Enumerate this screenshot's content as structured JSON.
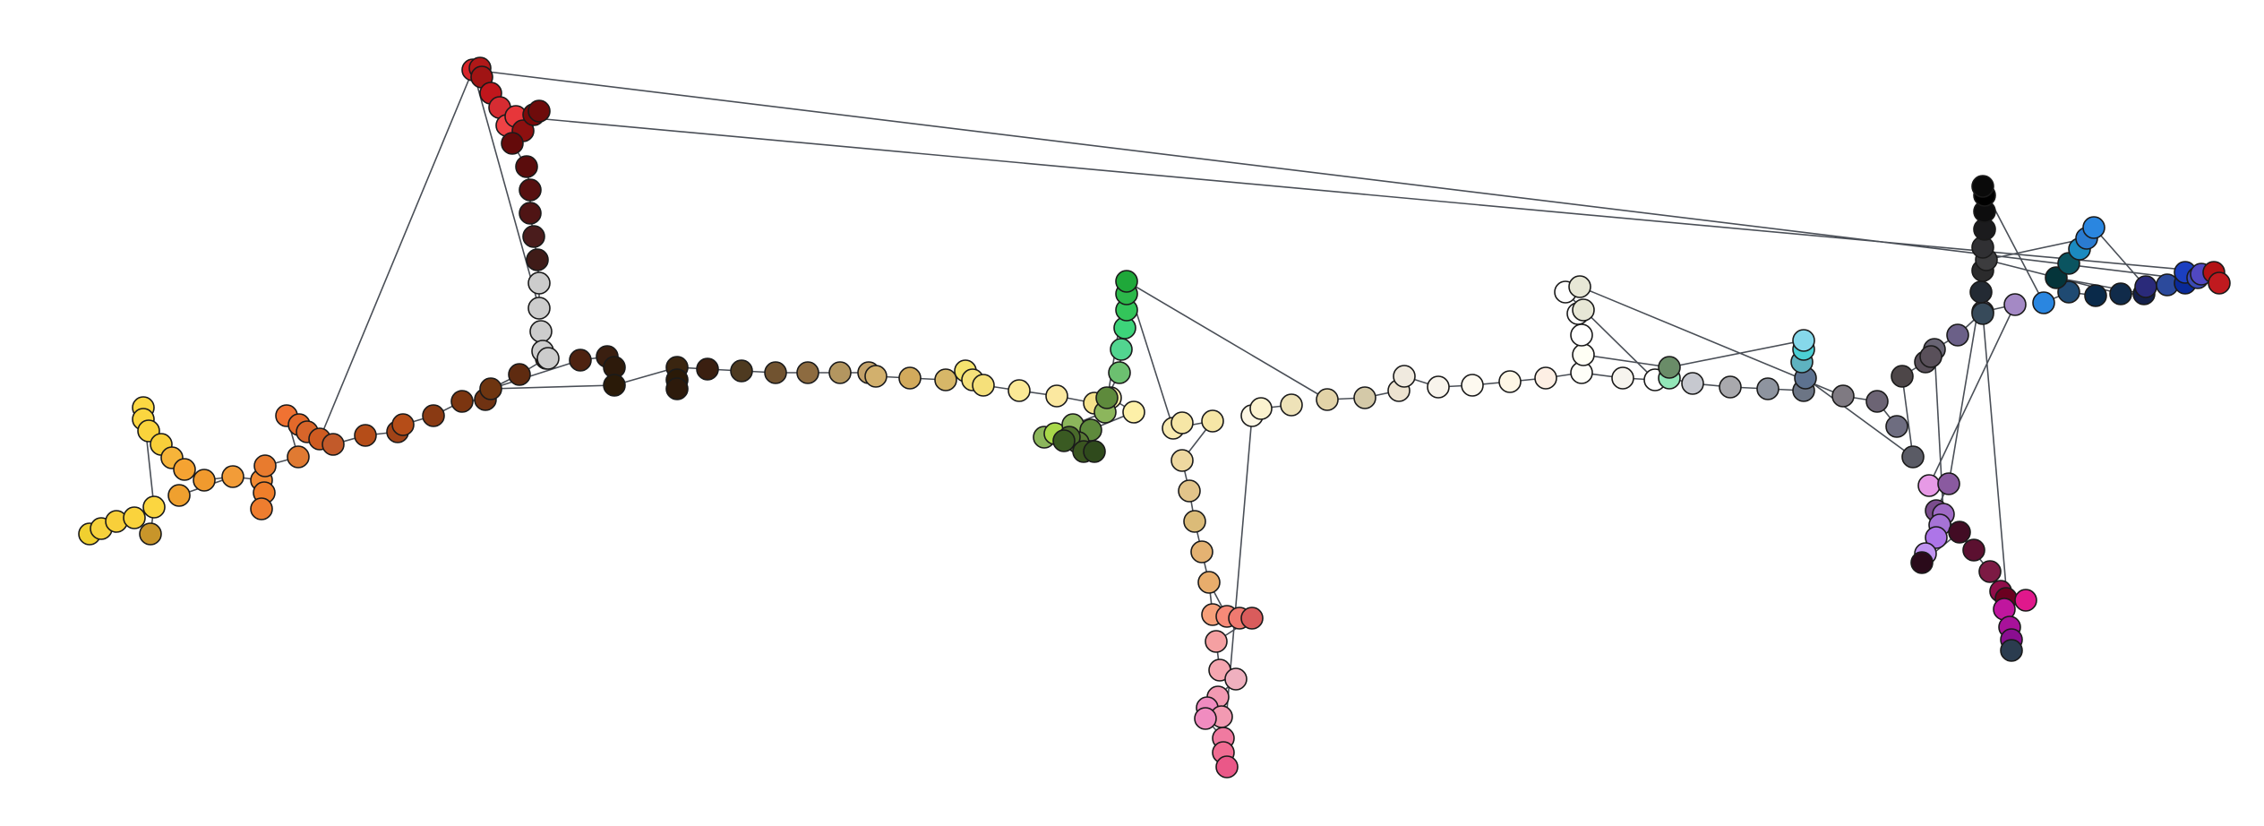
{
  "diagram": {
    "type": "tree",
    "description_visible_text": "",
    "colors": [
      "#f0d030",
      "#f6d23c",
      "#f8cf3a",
      "#fad33c",
      "#fbd640",
      "#fcd843",
      "#c8952a",
      "#f6b43a",
      "#f5a332",
      "#f09a2e",
      "#efa02f",
      "#f29c38",
      "#f28a33",
      "#ef7e2a",
      "#ee7d2f",
      "#e87b2e",
      "#e07a32",
      "#f07232",
      "#e3692a",
      "#d8652a",
      "#cf5b21",
      "#c25a2a",
      "#b54d18",
      "#a14317",
      "#8a3a13",
      "#7b3510",
      "#6f3212",
      "#6e3510",
      "#5f2b10",
      "#5a2a12",
      "#4e2210",
      "#3a1f10",
      "#2d1a0b",
      "#2a1a08",
      "#3a2510",
      "#4e3a20",
      "#715330",
      "#8d6b40",
      "#b39660",
      "#c3a26a",
      "#d2b06d",
      "#d2aa5c",
      "#d7b768",
      "#e7c56e",
      "#f5e46f",
      "#f5e07a",
      "#fbe996",
      "#fbe8a0",
      "#f5e28c",
      "#fdf0a8",
      "#3a5a22",
      "#2f4a1c",
      "#3a5520",
      "#496a2a",
      "#587a35",
      "#5e8a3c",
      "#8cb65c",
      "#a8d84a",
      "#c3f050",
      "#1aa83c",
      "#1fa83a",
      "#2cb84a",
      "#33c55a",
      "#3dd47a",
      "#52d590",
      "#6cc070",
      "#f8eab0",
      "#f6e6a6",
      "#eed8a0",
      "#e2c48a",
      "#dbbb78",
      "#e4b272",
      "#e8ad6c",
      "#f6a07a",
      "#f68a78",
      "#f07a70",
      "#d95c5c",
      "#a84848",
      "#f5a0a2",
      "#f5a6b0",
      "#efb0bf",
      "#f29ab2",
      "#f08cc0",
      "#f07aa0",
      "#f06c92",
      "#ea5888",
      "#e04b7a",
      "#fdf7e4",
      "#fbf2cf",
      "#eee2b8",
      "#e2d3a8",
      "#d4c9a8",
      "#ede3d0",
      "#f0eadf",
      "#f8f4ec",
      "#fdf9f0",
      "#fef7e6",
      "#fdefe4",
      "#fefef8",
      "#f6f4ee",
      "#fffff5",
      "#ffffff",
      "#e7e7d6",
      "#dfe4dd",
      "#93e6b8",
      "#6a8c68",
      "#c6c8cf",
      "#a9a9ad",
      "#8e949f",
      "#6c7585",
      "#5d7290",
      "#5eb2c0",
      "#4ccfd4",
      "#86d8ea",
      "#7f7a82",
      "#6c6474",
      "#6e6d80",
      "#5a5b65",
      "#4d4648",
      "#59505a",
      "#686473",
      "#6b6088",
      "#9b7fb0",
      "#a489c5",
      "#e79ae6",
      "#8a5aa0",
      "#7a4c8c",
      "#9f6ac5",
      "#a673d6",
      "#ad75e8",
      "#c094f0",
      "#2a0a1a",
      "#420c24",
      "#5b1030",
      "#7c1a44",
      "#900d4a",
      "#6b0020",
      "#e0188c",
      "#c0169e",
      "#a8119a",
      "#8a0e90",
      "#2b3c4f",
      "#374a5a",
      "#232a33",
      "#2b2b2c",
      "#3c3c3e",
      "#303033",
      "#1b1b1d",
      "#0d0d0e",
      "#000000",
      "#0a0a0a",
      "#04343a",
      "#0a5460",
      "#1b8ac0",
      "#2a7bd0",
      "#2a86e0",
      "#1f4a72",
      "#0a2a4a",
      "#102b4a",
      "#14204a",
      "#2a2a7a",
      "#2c4a9c",
      "#0a2a98",
      "#1b3fc0",
      "#3a4ab5",
      "#5048c2",
      "#b31214",
      "#c01a1f",
      "#d7262a",
      "#b01818",
      "#a01414",
      "#c0161c",
      "#d62c32",
      "#ef4245",
      "#e7363a",
      "#8d1010",
      "#7b0a0a",
      "#6e0b0b",
      "#640a0a",
      "#5a0c0c",
      "#571010",
      "#4f1414",
      "#4a1c1c",
      "#3f1b18"
    ]
  }
}
